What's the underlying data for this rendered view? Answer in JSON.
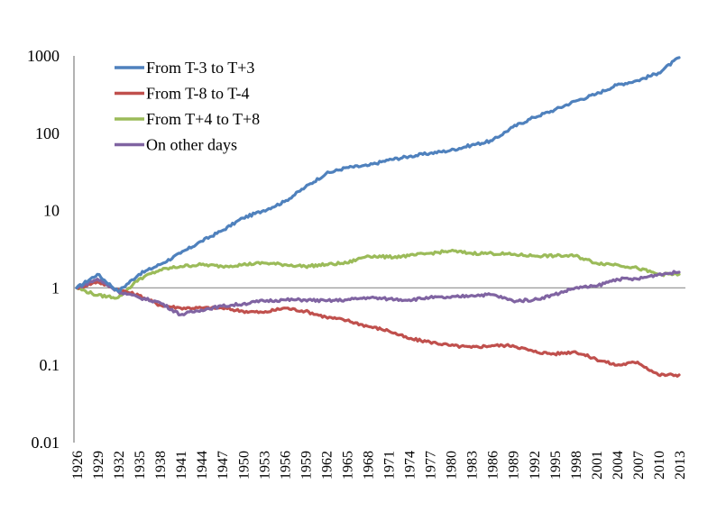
{
  "chart_data": {
    "type": "line",
    "title": "",
    "xlabel": "",
    "ylabel": "",
    "yscale": "log",
    "ylim": [
      0.01,
      1000
    ],
    "xlim": [
      1926,
      2013
    ],
    "grid": false,
    "reference_line": 1,
    "legend_position": "top-left",
    "y_ticks": [
      {
        "value": 1000,
        "label": "1000"
      },
      {
        "value": 100,
        "label": "100"
      },
      {
        "value": 10,
        "label": "10"
      },
      {
        "value": 1,
        "label": "1"
      },
      {
        "value": 0.1,
        "label": "0.1"
      },
      {
        "value": 0.01,
        "label": "0.01"
      }
    ],
    "x_ticks": [
      "1926",
      "1929",
      "1932",
      "1935",
      "1938",
      "1941",
      "1944",
      "1947",
      "1950",
      "1953",
      "1956",
      "1959",
      "1962",
      "1965",
      "1968",
      "1971",
      "1974",
      "1977",
      "1980",
      "1983",
      "1986",
      "1989",
      "1992",
      "1995",
      "1998",
      "2001",
      "2004",
      "2007",
      "2010",
      "2013"
    ],
    "x": [
      1926,
      1929,
      1932,
      1935,
      1938,
      1941,
      1944,
      1947,
      1950,
      1953,
      1956,
      1959,
      1962,
      1965,
      1968,
      1971,
      1974,
      1977,
      1980,
      1983,
      1986,
      1989,
      1992,
      1995,
      1998,
      2001,
      2004,
      2007,
      2010,
      2013
    ],
    "series": [
      {
        "name": "From T-3 to T+3",
        "color": "#4f81bd",
        "values": [
          1.0,
          1.5,
          0.9,
          1.5,
          2.0,
          2.8,
          4.0,
          5.5,
          8.0,
          10,
          13,
          20,
          30,
          36,
          38,
          45,
          50,
          55,
          60,
          70,
          80,
          120,
          160,
          200,
          260,
          320,
          420,
          480,
          600,
          950
        ]
      },
      {
        "name": "From T-8 to T-4",
        "color": "#c0504d",
        "values": [
          1.0,
          1.2,
          0.95,
          0.8,
          0.6,
          0.55,
          0.55,
          0.55,
          0.5,
          0.48,
          0.55,
          0.5,
          0.42,
          0.38,
          0.32,
          0.28,
          0.22,
          0.2,
          0.18,
          0.17,
          0.18,
          0.18,
          0.15,
          0.14,
          0.15,
          0.12,
          0.1,
          0.11,
          0.075,
          0.075
        ]
      },
      {
        "name": "From T+4 to T+8",
        "color": "#9bbb59",
        "values": [
          1.0,
          0.8,
          0.75,
          1.3,
          1.7,
          1.9,
          2.0,
          1.9,
          2.0,
          2.1,
          2.0,
          1.9,
          2.0,
          2.1,
          2.6,
          2.5,
          2.6,
          2.8,
          3.0,
          2.8,
          2.8,
          2.7,
          2.6,
          2.6,
          2.6,
          2.1,
          2.0,
          1.8,
          1.5,
          1.5
        ]
      },
      {
        "name": "On other days",
        "color": "#8064a2",
        "values": [
          1.0,
          1.3,
          0.9,
          0.75,
          0.65,
          0.45,
          0.52,
          0.58,
          0.62,
          0.68,
          0.7,
          0.7,
          0.68,
          0.7,
          0.75,
          0.72,
          0.7,
          0.75,
          0.75,
          0.8,
          0.82,
          0.68,
          0.7,
          0.82,
          1.0,
          1.05,
          1.3,
          1.3,
          1.5,
          1.6
        ]
      }
    ]
  }
}
